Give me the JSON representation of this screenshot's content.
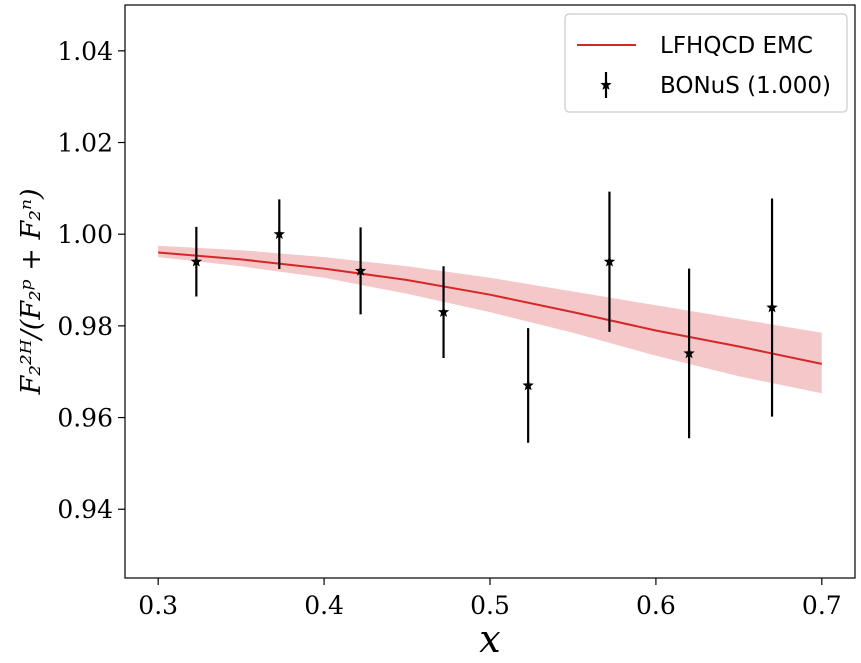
{
  "chart_data": {
    "type": "line",
    "title": "",
    "xlabel": "x",
    "ylabel": "F₂²ᴴ/(F₂ᵖ + F₂ⁿ)",
    "xlim": [
      0.28,
      0.72
    ],
    "ylim": [
      0.925,
      1.05
    ],
    "x_ticks": [
      0.3,
      0.4,
      0.5,
      0.6,
      0.7
    ],
    "x_tick_labels": [
      "0.3",
      "0.4",
      "0.5",
      "0.6",
      "0.7"
    ],
    "y_ticks": [
      0.94,
      0.96,
      0.98,
      1.0,
      1.02,
      1.04
    ],
    "y_tick_labels": [
      "0.94",
      "0.96",
      "0.98",
      "1.00",
      "1.02",
      "1.04"
    ],
    "grid": false,
    "legend_position": "top-right",
    "colors": {
      "model": "#d62728",
      "band": "#f4c7c9",
      "data": "#000000"
    },
    "series": [
      {
        "name": "LFHQCD EMC",
        "kind": "line",
        "x": [
          0.3,
          0.35,
          0.4,
          0.45,
          0.5,
          0.55,
          0.6,
          0.65,
          0.7
        ],
        "y": [
          0.996,
          0.9945,
          0.9925,
          0.99,
          0.9868,
          0.983,
          0.979,
          0.9755,
          0.9717
        ],
        "band_upper": [
          0.9975,
          0.9965,
          0.995,
          0.993,
          0.9905,
          0.9875,
          0.9845,
          0.9815,
          0.9785
        ],
        "band_lower": [
          0.995,
          0.993,
          0.9905,
          0.987,
          0.983,
          0.9785,
          0.9735,
          0.969,
          0.9653
        ]
      },
      {
        "name": "BONuS (1.000)",
        "kind": "errorbar",
        "x": [
          0.323,
          0.373,
          0.422,
          0.472,
          0.523,
          0.572,
          0.62,
          0.67
        ],
        "y": [
          0.994,
          1.0,
          0.992,
          0.983,
          0.967,
          0.994,
          0.974,
          0.984
        ],
        "err": [
          0.0076,
          0.0076,
          0.0095,
          0.01,
          0.0125,
          0.0153,
          0.0185,
          0.0238
        ]
      }
    ]
  }
}
